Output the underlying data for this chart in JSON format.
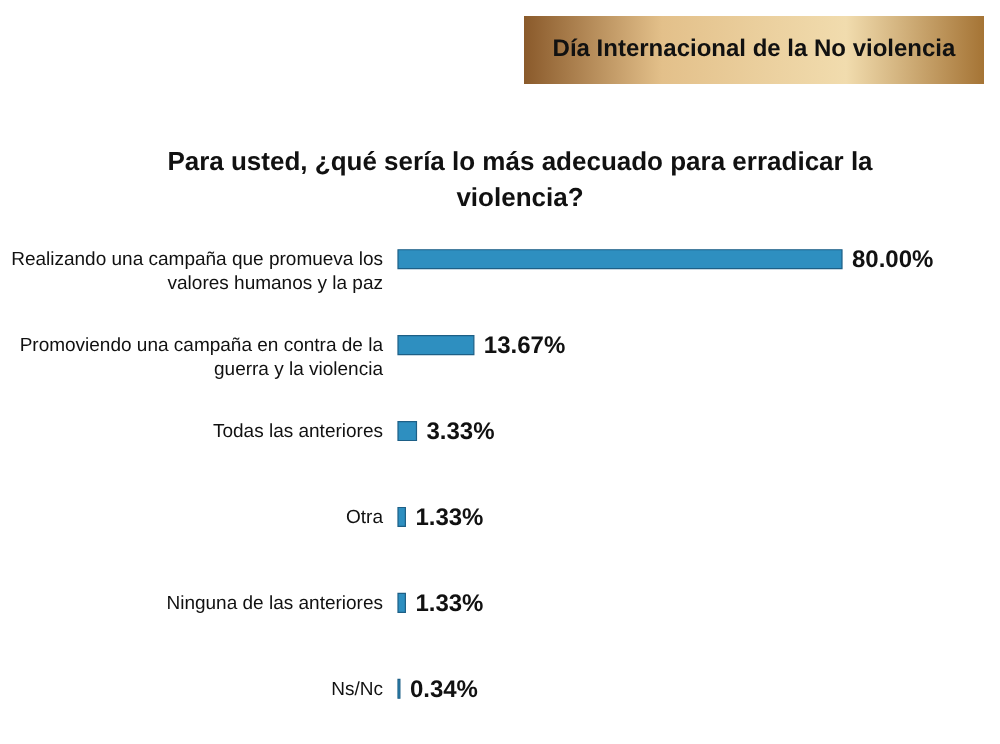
{
  "chart_data": {
    "type": "bar",
    "orientation": "horizontal",
    "title": "Día Internacional de la No violencia",
    "subtitle": "Para usted, ¿qué sería lo más adecuado para erradicar la violencia?",
    "categories": [
      "Realizando una campaña que promueva los valores humanos y la paz",
      "Promoviendo una campaña en contra de la guerra y la violencia",
      "Todas las anteriores",
      "Otra",
      "Ninguna de las anteriores",
      "Ns/Nc"
    ],
    "values": [
      80,
      13.67,
      3.33,
      1.33,
      1.33,
      0.34
    ],
    "value_labels": [
      "80.00%",
      "13.67%",
      "3.33%",
      "1.33%",
      "1.33%",
      "0.34%"
    ],
    "color": "#2e8fc0"
  }
}
